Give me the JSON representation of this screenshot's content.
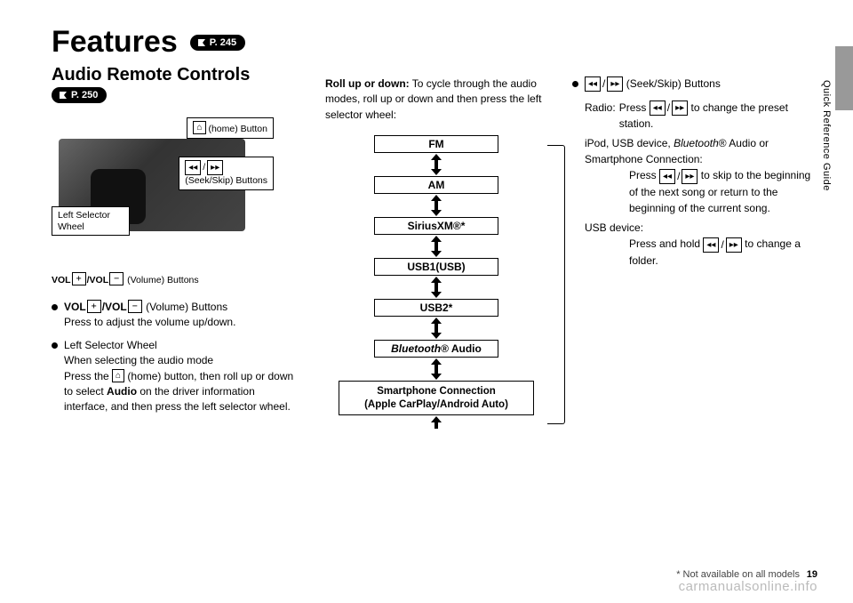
{
  "title": "Features",
  "title_pill": "P. 245",
  "subtitle": "Audio Remote Controls",
  "subtitle_pill": "P. 250",
  "side_label": "Quick Reference Guide",
  "diagram": {
    "home_label": "(home) Button",
    "seek_label": "(Seek/Skip) Buttons",
    "left_wheel": "Left Selector Wheel",
    "vol_label": "(Volume) Buttons",
    "vol_prefix_plus": "VOL",
    "vol_prefix_minus": "/VOL"
  },
  "bullets_col1": [
    {
      "lead_html": "<strong>VOL</strong><span class='key-box'>+</span><strong>/VOL</strong><span class='key-box'>−</span> (Volume) Buttons",
      "body": "Press to adjust the volume up/down."
    },
    {
      "lead_html": "Left Selector Wheel",
      "body_html": "When selecting the audio mode<br>Press the <span class='inline-icon'>⌂</span> (home) button, then roll up or down to select <strong>Audio</strong> on the driver information interface, and then press the left selector wheel."
    }
  ],
  "col2": {
    "intro_html": "<strong>Roll up or down:</strong> To cycle through the audio modes, roll up or down and then press the left selector wheel:",
    "flow": [
      "FM",
      "AM",
      "SiriusXM®*",
      "USB1(USB)",
      "USB2*",
      "<span class='ital'>Bluetooth</span>® Audio",
      "Smartphone Connection<br>(Apple CarPlay/Android Auto)"
    ]
  },
  "col3": {
    "bullet_lead": "(Seek/Skip) Buttons",
    "radio_label": "Radio:",
    "radio_body": "to change the preset station.",
    "radio_press": "Press",
    "ipod_line_html": "iPod, USB device, <span class='ital'>Bluetooth</span>® Audio or Smartphone Connection:",
    "ipod_body": "Press <span class='skip-icons'><span class='inline-icon'>◂◂</span> / <span class='inline-icon'>▸▸</span></span> to skip to the beginning of the next song or return to the beginning of the current song.",
    "usb_label": "USB device:",
    "usb_body": "Press and hold <span class='skip-icons'><span class='inline-icon'>◂◂</span> / <span class='inline-icon'>▸▸</span></span> to change a folder."
  },
  "footer": {
    "note": "* Not available on all models",
    "page_no": "19",
    "watermark": "carmanualsonline.info"
  },
  "colors": {
    "accent": "#000000",
    "tab": "#999999"
  }
}
